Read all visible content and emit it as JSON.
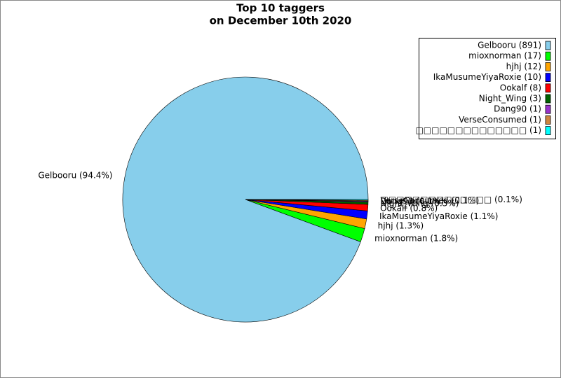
{
  "chart_data": {
    "type": "pie",
    "title": [
      "Top 10 taggers",
      "on December 10th 2020"
    ],
    "categories": [
      "Gelbooru",
      "mioxnorman",
      "hjhj",
      "IkaMusumeYiyaRoxie",
      "Ookalf",
      "Night_Wing",
      "Dang90",
      "VerseConsumed",
      "□□□□□□□□□□□□□□"
    ],
    "values": [
      891,
      17,
      12,
      10,
      8,
      3,
      1,
      1,
      1
    ],
    "value_labels": [
      "Gelbooru (94.4%)",
      "mioxnorman (1.8%)",
      "hjhj (1.3%)",
      "IkaMusumeYiyaRoxie (1.1%)",
      "Ookalf (0.8%)",
      "Night_Wing (0.3%)",
      "Dang90 (0.1%)",
      "VerseConsumed (0.1%)",
      "□□□□□□□□□□□□□□ (0.1%)"
    ],
    "legend_labels": [
      "Gelbooru (891)",
      "mioxnorman (17)",
      "hjhj (12)",
      "IkaMusumeYiyaRoxie (10)",
      "Ookalf (8)",
      "Night_Wing (3)",
      "Dang90 (1)",
      "VerseConsumed (1)",
      "□□□□□□□□□□□□□□ (1)"
    ],
    "colors": [
      "#87ceeb",
      "#00ff00",
      "#ffa500",
      "#0000ff",
      "#ff0000",
      "#006400",
      "#9932cc",
      "#cd853f",
      "#00ffff"
    ],
    "legend_position": "upper right"
  }
}
